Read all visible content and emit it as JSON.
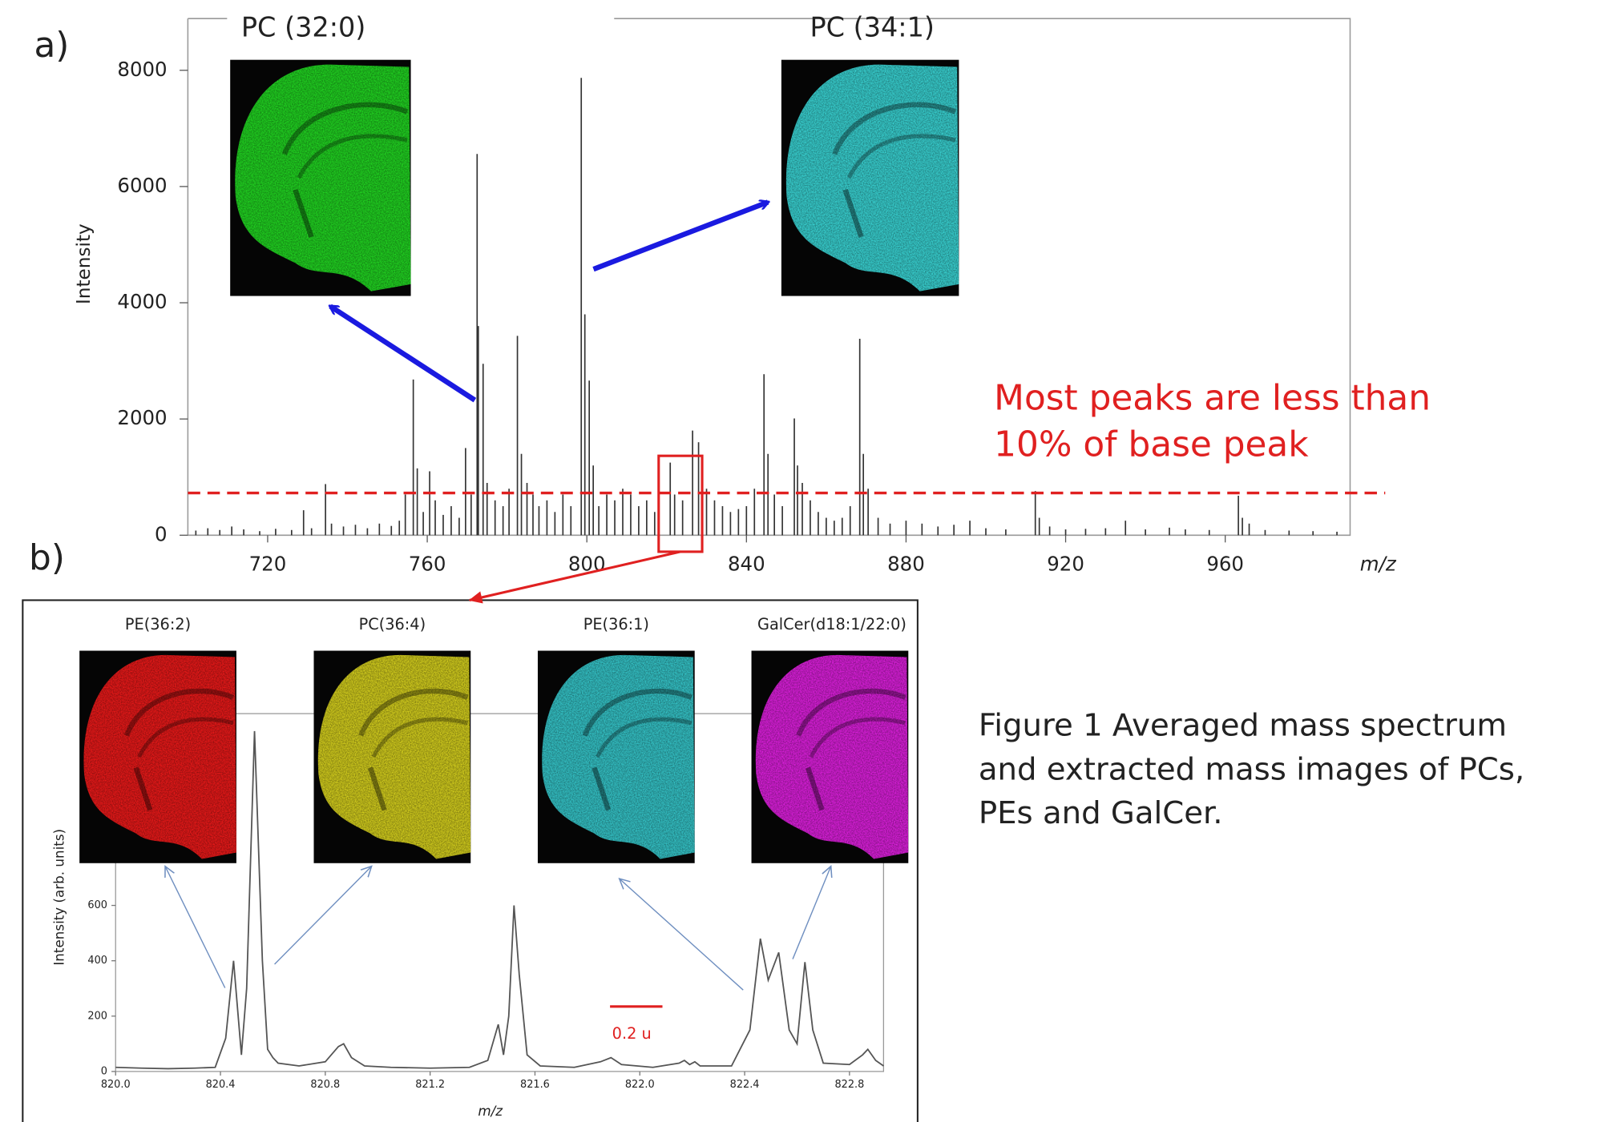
{
  "panel_labels": [
    "a)",
    "b)"
  ],
  "caption": [
    "Figure 1 Averaged mass spectrum",
    "and extracted mass images of PCs,",
    "PEs and GalCer."
  ],
  "chart_data": [
    {
      "type": "stem",
      "y_label": "Intensity",
      "x_label": "m/z",
      "color": "#333333",
      "xlim": [
        700,
        991.3
      ],
      "ylim": [
        0,
        8890
      ],
      "xticks": [
        720,
        760,
        800,
        840,
        880,
        920,
        960
      ],
      "yticks": [
        0,
        2000,
        4000,
        6000,
        8000
      ],
      "x": [
        702,
        705,
        708,
        711,
        714,
        718,
        722,
        726,
        729,
        731,
        734.5,
        736,
        739,
        742,
        745,
        748,
        751,
        753,
        754.5,
        756.5,
        757.5,
        759,
        760.6,
        762,
        764,
        766,
        768,
        769.6,
        771,
        772.5,
        772.8,
        774,
        775,
        777,
        779,
        780.5,
        782.6,
        783.6,
        785,
        786.5,
        788,
        790,
        792,
        794,
        796,
        798.6,
        799.5,
        800.6,
        801.6,
        803,
        805,
        807,
        809,
        811,
        813,
        815,
        817,
        820.9,
        822,
        824,
        826.5,
        828,
        830,
        832,
        834,
        836,
        838,
        840,
        842,
        844.4,
        845.4,
        847,
        849,
        852,
        852.8,
        854,
        856,
        858,
        860,
        862,
        864,
        866,
        868.4,
        869.3,
        870.5,
        873,
        876,
        880,
        884,
        888,
        892,
        896,
        900,
        905,
        912.4,
        913.4,
        916,
        920,
        925,
        930,
        935,
        940,
        946,
        950,
        956,
        963.3,
        964.3,
        966,
        970,
        976,
        982,
        988
      ],
      "values": [
        80,
        120,
        90,
        150,
        100,
        70,
        110,
        90,
        430,
        120,
        880,
        200,
        150,
        180,
        120,
        200,
        160,
        250,
        700,
        2680,
        1150,
        400,
        1100,
        600,
        350,
        500,
        300,
        1500,
        700,
        6560,
        3600,
        2950,
        900,
        600,
        500,
        800,
        3430,
        1400,
        900,
        700,
        500,
        600,
        400,
        700,
        500,
        7870,
        3800,
        2660,
        1200,
        500,
        700,
        600,
        800,
        700,
        500,
        600,
        400,
        1250,
        700,
        600,
        1800,
        1600,
        800,
        600,
        500,
        400,
        450,
        500,
        800,
        2770,
        1400,
        700,
        500,
        2010,
        1200,
        900,
        600,
        400,
        300,
        250,
        300,
        500,
        3380,
        1400,
        800,
        300,
        200,
        250,
        200,
        150,
        180,
        250,
        120,
        100,
        760,
        300,
        150,
        100,
        110,
        120,
        250,
        100,
        130,
        100,
        90,
        680,
        300,
        200,
        90,
        80,
        70,
        60
      ],
      "reference_line": {
        "value": 727,
        "color": "#e02020"
      },
      "highlight": {
        "xlim": [
          818,
          828.9
        ],
        "ylim": [
          -284,
          1366
        ],
        "color": "#e02020"
      },
      "annotation": {
        "lines": [
          "Most peaks are less than",
          "10% of base peak"
        ],
        "color": "#e02020"
      },
      "images": [
        {
          "label": "PC (32:0)",
          "color": "#22d822"
        },
        {
          "label": "PC (34:1)",
          "color": "#3ad6d6"
        }
      ],
      "arrow_color": "#1a1ae0"
    },
    {
      "type": "line",
      "y_label": "Intensity (arb. units)",
      "x_label": "m/z",
      "color": "#555555",
      "xlim": [
        820,
        822.93
      ],
      "ylim": [
        0,
        1293
      ],
      "xticks": [
        {
          "value": 820,
          "label": "820.0"
        },
        820.4,
        820.8,
        821.2,
        821.6,
        {
          "value": 822,
          "label": "822.0"
        },
        822.4,
        822.8
      ],
      "yticks": [
        0,
        200,
        400,
        600
      ],
      "x": [
        820.0,
        820.1,
        820.2,
        820.3,
        820.38,
        820.42,
        820.45,
        820.48,
        820.5,
        820.53,
        820.56,
        820.58,
        820.6,
        820.62,
        820.7,
        820.8,
        820.85,
        820.87,
        820.9,
        820.95,
        821.05,
        821.2,
        821.35,
        821.42,
        821.46,
        821.48,
        821.5,
        821.52,
        821.54,
        821.57,
        821.62,
        821.75,
        821.85,
        821.89,
        821.93,
        822.05,
        822.15,
        822.17,
        822.19,
        822.21,
        822.23,
        822.35,
        822.42,
        822.46,
        822.49,
        822.53,
        822.57,
        822.6,
        822.63,
        822.66,
        822.7,
        822.8,
        822.85,
        822.87,
        822.9,
        822.93
      ],
      "values": [
        15,
        12,
        10,
        12,
        15,
        120,
        400,
        60,
        300,
        1230,
        400,
        80,
        50,
        30,
        20,
        35,
        90,
        100,
        50,
        20,
        15,
        12,
        15,
        40,
        170,
        60,
        200,
        600,
        350,
        60,
        20,
        15,
        35,
        50,
        25,
        15,
        30,
        40,
        25,
        35,
        20,
        20,
        150,
        480,
        330,
        430,
        150,
        100,
        395,
        150,
        30,
        25,
        60,
        80,
        40,
        20
      ],
      "scale_bar": {
        "length": 0.2,
        "label": "0.2 u",
        "color": "#e02020"
      },
      "images": [
        {
          "label": "PE(36:2)",
          "color": "#ee1a1a"
        },
        {
          "label": "PC(36:4)",
          "color": "#d8d21e"
        },
        {
          "label": "PE(36:1)",
          "color": "#36c8cc"
        },
        {
          "label": "GalCer(d18:1/22:0)",
          "color": "#e020e0"
        }
      ],
      "arrow_color": "#6f8fc0"
    }
  ]
}
